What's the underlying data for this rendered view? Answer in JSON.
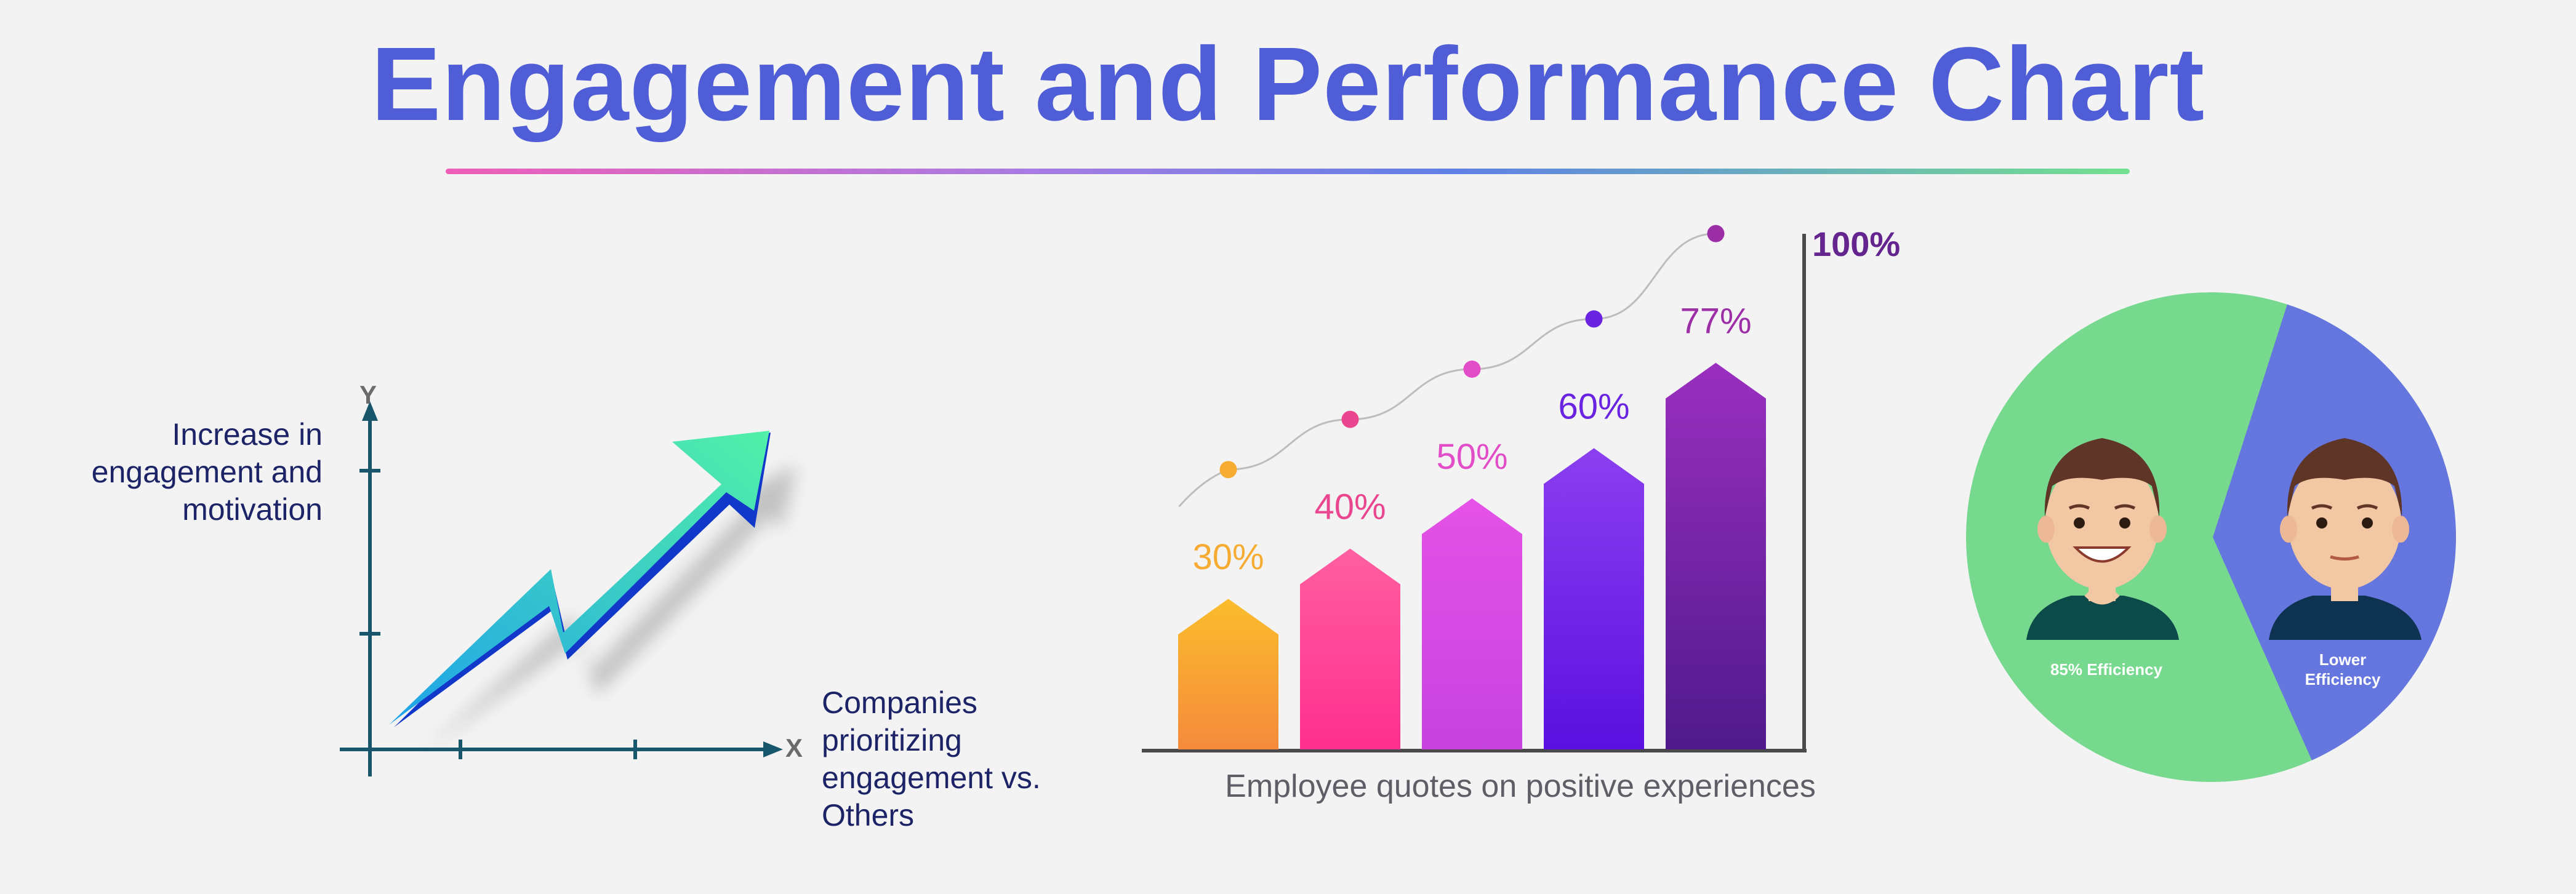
{
  "title": "Engagement and Performance Chart",
  "left_panel": {
    "y_axis_letter": "Y",
    "x_axis_letter": "X",
    "y_label": "Increase in engagement and motivation",
    "x_label": "Companies prioritizing engagement vs. Others"
  },
  "colors": {
    "title": "#4f5ed6",
    "arrow_start": "#1ea2ea",
    "arrow_end": "#52f0a8",
    "pie_green": "#76d98e",
    "pie_blue": "#6676df"
  },
  "chart_data": [
    {
      "type": "bar",
      "categories": [
        "",
        "",
        "",
        "",
        ""
      ],
      "values": [
        30,
        40,
        50,
        60,
        77
      ],
      "data_labels": [
        "30%",
        "40%",
        "50%",
        "60%",
        "77%"
      ],
      "axis_max_label": "100%",
      "ylim": [
        0,
        100
      ],
      "xlabel": "Employee quotes on positive experiences",
      "trend_line": true,
      "bar_colors": [
        "#fbbd2c",
        "#ff5fa0",
        "#e552e6",
        "#8b3ff0",
        "#9a2fbf"
      ],
      "label_colors": [
        "#f6ab32",
        "#e9468f",
        "#e24ec8",
        "#6a23e0",
        "#9c2ea6"
      ]
    },
    {
      "type": "pie",
      "slices": [
        {
          "label": "85% Efficiency",
          "color": "#76d98e"
        },
        {
          "label": "Lower Efficiency",
          "color": "#6676df"
        }
      ]
    }
  ]
}
